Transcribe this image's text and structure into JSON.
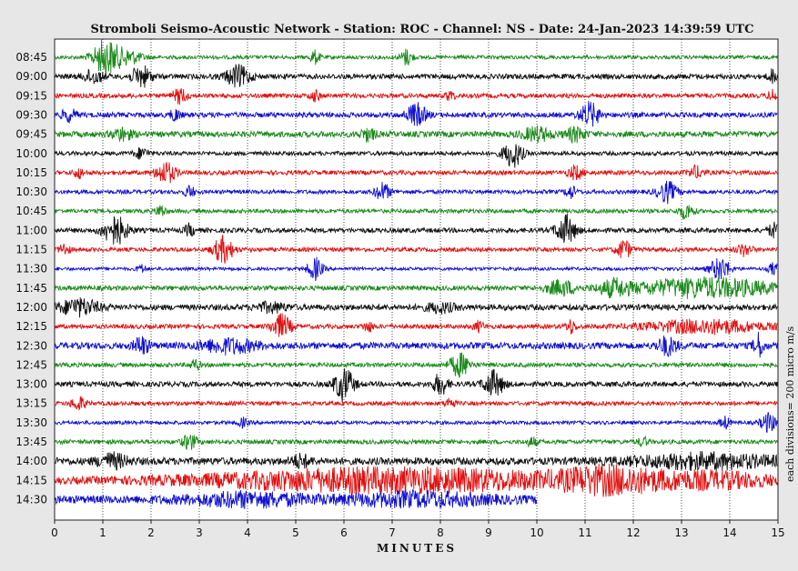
{
  "title": "Stromboli Seismo-Acoustic Network - Station: ROC - Channel: NS - Date: 24-Jan-2023 14:39:59 UTC",
  "scale_note": "each divisions= 200 micro m/s",
  "chart_data": {
    "type": "line",
    "title": "Stromboli Seismo-Acoustic Network - Station: ROC - Channel: NS - Date: 24-Jan-2023 14:39:59 UTC",
    "xlabel": "MINUTES",
    "ylabel": "",
    "xlim": [
      0,
      15
    ],
    "x_ticks": [
      "0",
      "1",
      "2",
      "3",
      "4",
      "5",
      "6",
      "7",
      "8",
      "9",
      "10",
      "11",
      "12",
      "13",
      "14",
      "15"
    ],
    "grid": true,
    "row_colors": [
      "#1a8a1a",
      "#111111",
      "#e01010",
      "#1010d0"
    ],
    "series": [
      {
        "label": "08:45",
        "color": "#1a8a1a",
        "noise": 0.25,
        "end_minute": 15,
        "events": [
          {
            "t": 1.05,
            "amp": 2.4,
            "w": 0.25
          },
          {
            "t": 1.5,
            "amp": 1.0,
            "w": 0.3
          },
          {
            "t": 5.4,
            "amp": 0.9,
            "w": 0.1
          },
          {
            "t": 7.3,
            "amp": 1.1,
            "w": 0.12
          }
        ]
      },
      {
        "label": "09:00",
        "color": "#111111",
        "noise": 0.35,
        "end_minute": 15,
        "events": [
          {
            "t": 0.8,
            "amp": 0.9,
            "w": 0.2
          },
          {
            "t": 1.8,
            "amp": 1.4,
            "w": 0.2
          },
          {
            "t": 3.8,
            "amp": 1.4,
            "w": 0.25
          },
          {
            "t": 14.9,
            "amp": 0.9,
            "w": 0.1
          }
        ]
      },
      {
        "label": "09:15",
        "color": "#e01010",
        "noise": 0.3,
        "end_minute": 15,
        "events": [
          {
            "t": 2.6,
            "amp": 1.0,
            "w": 0.15
          },
          {
            "t": 5.4,
            "amp": 0.7,
            "w": 0.1
          },
          {
            "t": 8.2,
            "amp": 0.6,
            "w": 0.1
          },
          {
            "t": 14.9,
            "amp": 0.8,
            "w": 0.1
          }
        ]
      },
      {
        "label": "09:30",
        "color": "#1010d0",
        "noise": 0.35,
        "end_minute": 15,
        "events": [
          {
            "t": 0.3,
            "amp": 0.8,
            "w": 0.15
          },
          {
            "t": 2.5,
            "amp": 0.8,
            "w": 0.1
          },
          {
            "t": 7.5,
            "amp": 1.5,
            "w": 0.2
          },
          {
            "t": 11.1,
            "amp": 1.6,
            "w": 0.2
          }
        ]
      },
      {
        "label": "09:45",
        "color": "#1a8a1a",
        "noise": 0.4,
        "end_minute": 15,
        "events": [
          {
            "t": 1.4,
            "amp": 0.8,
            "w": 0.2
          },
          {
            "t": 6.5,
            "amp": 0.8,
            "w": 0.15
          },
          {
            "t": 10.0,
            "amp": 0.9,
            "w": 0.3
          },
          {
            "t": 10.8,
            "amp": 0.9,
            "w": 0.2
          }
        ]
      },
      {
        "label": "10:00",
        "color": "#111111",
        "noise": 0.28,
        "end_minute": 15,
        "events": [
          {
            "t": 1.8,
            "amp": 0.7,
            "w": 0.15
          },
          {
            "t": 9.5,
            "amp": 1.8,
            "w": 0.2
          }
        ]
      },
      {
        "label": "10:15",
        "color": "#e01010",
        "noise": 0.3,
        "end_minute": 15,
        "events": [
          {
            "t": 0.5,
            "amp": 0.7,
            "w": 0.1
          },
          {
            "t": 2.3,
            "amp": 1.5,
            "w": 0.2
          },
          {
            "t": 10.8,
            "amp": 0.9,
            "w": 0.15
          },
          {
            "t": 13.3,
            "amp": 0.8,
            "w": 0.15
          }
        ]
      },
      {
        "label": "10:30",
        "color": "#1010d0",
        "noise": 0.28,
        "end_minute": 15,
        "events": [
          {
            "t": 2.8,
            "amp": 0.8,
            "w": 0.1
          },
          {
            "t": 6.8,
            "amp": 1.2,
            "w": 0.15
          },
          {
            "t": 10.7,
            "amp": 0.9,
            "w": 0.1
          },
          {
            "t": 12.7,
            "amp": 1.4,
            "w": 0.2
          }
        ]
      },
      {
        "label": "10:45",
        "color": "#1a8a1a",
        "noise": 0.28,
        "end_minute": 15,
        "events": [
          {
            "t": 2.2,
            "amp": 0.8,
            "w": 0.1
          },
          {
            "t": 13.1,
            "amp": 1.0,
            "w": 0.15
          }
        ]
      },
      {
        "label": "11:00",
        "color": "#111111",
        "noise": 0.32,
        "end_minute": 15,
        "events": [
          {
            "t": 1.25,
            "amp": 2.0,
            "w": 0.25
          },
          {
            "t": 2.8,
            "amp": 0.8,
            "w": 0.1
          },
          {
            "t": 10.6,
            "amp": 2.0,
            "w": 0.2
          },
          {
            "t": 14.9,
            "amp": 1.0,
            "w": 0.1
          }
        ]
      },
      {
        "label": "11:15",
        "color": "#e01010",
        "noise": 0.28,
        "end_minute": 15,
        "events": [
          {
            "t": 0.2,
            "amp": 0.8,
            "w": 0.1
          },
          {
            "t": 3.5,
            "amp": 1.8,
            "w": 0.2
          },
          {
            "t": 11.8,
            "amp": 1.3,
            "w": 0.15
          },
          {
            "t": 14.3,
            "amp": 0.8,
            "w": 0.15
          }
        ]
      },
      {
        "label": "11:30",
        "color": "#1010d0",
        "noise": 0.22,
        "end_minute": 15,
        "events": [
          {
            "t": 1.8,
            "amp": 0.5,
            "w": 0.1
          },
          {
            "t": 5.4,
            "amp": 1.5,
            "w": 0.15
          },
          {
            "t": 13.8,
            "amp": 1.6,
            "w": 0.2
          },
          {
            "t": 14.9,
            "amp": 0.8,
            "w": 0.1
          }
        ]
      },
      {
        "label": "11:45",
        "color": "#1a8a1a",
        "noise": 0.32,
        "end_minute": 15,
        "events": [
          {
            "t": 10.5,
            "amp": 1.0,
            "w": 0.3
          },
          {
            "t": 11.6,
            "amp": 1.0,
            "w": 0.3
          },
          {
            "t": 13.5,
            "amp": 1.3,
            "w": 1.5
          }
        ]
      },
      {
        "label": "12:00",
        "color": "#111111",
        "noise": 0.4,
        "end_minute": 15,
        "events": [
          {
            "t": 0.5,
            "amp": 1.1,
            "w": 0.4
          },
          {
            "t": 4.5,
            "amp": 0.6,
            "w": 0.3
          },
          {
            "t": 8.0,
            "amp": 0.6,
            "w": 0.3
          }
        ]
      },
      {
        "label": "12:15",
        "color": "#e01010",
        "noise": 0.3,
        "end_minute": 15,
        "events": [
          {
            "t": 4.7,
            "amp": 1.6,
            "w": 0.2
          },
          {
            "t": 6.5,
            "amp": 0.7,
            "w": 0.1
          },
          {
            "t": 8.8,
            "amp": 0.7,
            "w": 0.1
          },
          {
            "t": 10.7,
            "amp": 0.9,
            "w": 0.1
          },
          {
            "t": 13.5,
            "amp": 0.9,
            "w": 1.2
          }
        ]
      },
      {
        "label": "12:30",
        "color": "#1010d0",
        "noise": 0.45,
        "end_minute": 15,
        "events": [
          {
            "t": 1.8,
            "amp": 1.2,
            "w": 0.15
          },
          {
            "t": 3.6,
            "amp": 0.9,
            "w": 0.6
          },
          {
            "t": 12.7,
            "amp": 1.2,
            "w": 0.2
          },
          {
            "t": 14.6,
            "amp": 1.6,
            "w": 0.1
          }
        ]
      },
      {
        "label": "12:45",
        "color": "#1a8a1a",
        "noise": 0.3,
        "end_minute": 15,
        "events": [
          {
            "t": 2.9,
            "amp": 0.7,
            "w": 0.1
          },
          {
            "t": 8.4,
            "amp": 1.6,
            "w": 0.2
          }
        ]
      },
      {
        "label": "13:00",
        "color": "#111111",
        "noise": 0.35,
        "end_minute": 15,
        "events": [
          {
            "t": 6.0,
            "amp": 2.2,
            "w": 0.2
          },
          {
            "t": 8.0,
            "amp": 1.4,
            "w": 0.15
          },
          {
            "t": 9.1,
            "amp": 1.8,
            "w": 0.2
          }
        ]
      },
      {
        "label": "13:15",
        "color": "#e01010",
        "noise": 0.28,
        "end_minute": 15,
        "events": [
          {
            "t": 0.5,
            "amp": 0.9,
            "w": 0.15
          },
          {
            "t": 8.2,
            "amp": 0.7,
            "w": 0.1
          }
        ]
      },
      {
        "label": "13:30",
        "color": "#1010d0",
        "noise": 0.25,
        "end_minute": 15,
        "events": [
          {
            "t": 3.9,
            "amp": 0.6,
            "w": 0.1
          },
          {
            "t": 13.9,
            "amp": 0.8,
            "w": 0.1
          },
          {
            "t": 14.8,
            "amp": 1.3,
            "w": 0.15
          }
        ]
      },
      {
        "label": "13:45",
        "color": "#1a8a1a",
        "noise": 0.3,
        "end_minute": 15,
        "events": [
          {
            "t": 2.8,
            "amp": 1.0,
            "w": 0.15
          },
          {
            "t": 9.9,
            "amp": 0.6,
            "w": 0.1
          },
          {
            "t": 12.2,
            "amp": 0.6,
            "w": 0.1
          }
        ]
      },
      {
        "label": "14:00",
        "color": "#111111",
        "noise": 0.5,
        "end_minute": 15,
        "events": [
          {
            "t": 1.2,
            "amp": 0.9,
            "w": 0.3
          },
          {
            "t": 5.1,
            "amp": 0.8,
            "w": 0.2
          },
          {
            "t": 13.5,
            "amp": 0.9,
            "w": 1.5
          }
        ]
      },
      {
        "label": "14:15",
        "color": "#e01010",
        "noise": 0.4,
        "end_minute": 15,
        "events": [
          {
            "t": 7.0,
            "amp": 1.6,
            "w": 4.0
          },
          {
            "t": 11.5,
            "amp": 1.4,
            "w": 1.0
          },
          {
            "t": 13.6,
            "amp": 1.0,
            "w": 1.4
          }
        ]
      },
      {
        "label": "14:30",
        "color": "#1010d0",
        "noise": 0.55,
        "end_minute": 10,
        "events": [
          {
            "t": 4.0,
            "amp": 0.8,
            "w": 1.2
          },
          {
            "t": 7.5,
            "amp": 0.8,
            "w": 1.5
          }
        ]
      }
    ]
  }
}
